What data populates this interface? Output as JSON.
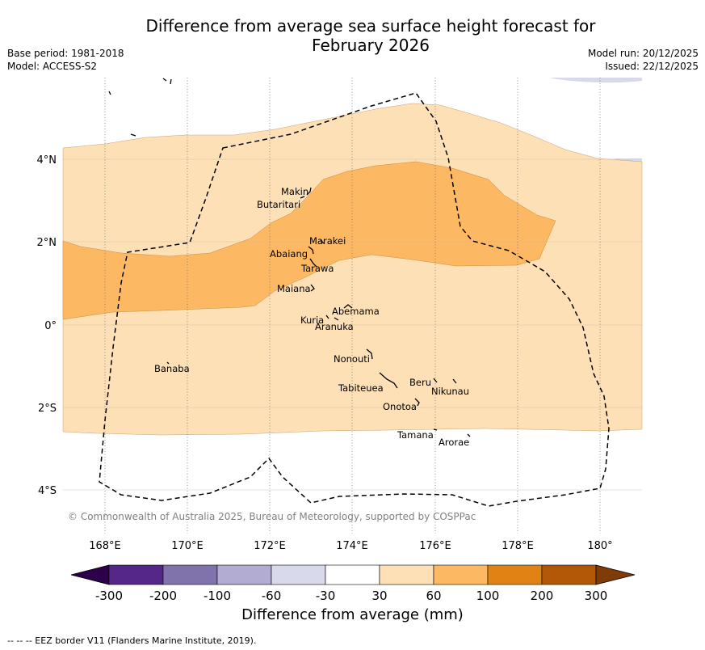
{
  "title": {
    "line1": "Difference from average sea surface height forecast for",
    "line2": "February 2026"
  },
  "meta": {
    "base_period": "Base period: 1981-2018",
    "model": "Model: ACCESS-S2",
    "model_run": "Model run: 20/12/2025",
    "issued": "Issued: 22/12/2025"
  },
  "axes": {
    "longitude_labels": [
      "168°E",
      "170°E",
      "172°E",
      "174°E",
      "176°E",
      "178°E",
      "180°"
    ],
    "latitude_labels": [
      "4°N",
      "2°N",
      "0°",
      "2°S",
      "4°S"
    ],
    "lon_range": [
      167,
      181
    ],
    "lat_range": [
      -5,
      6
    ]
  },
  "places": [
    {
      "name": "Makin",
      "lon": 173.0,
      "lat": 3.3
    },
    {
      "name": "Butaritari",
      "lon": 173.0,
      "lat": 3.0
    },
    {
      "name": "Marakei",
      "lon": 173.3,
      "lat": 2.0
    },
    {
      "name": "Abaiang",
      "lon": 172.9,
      "lat": 1.8
    },
    {
      "name": "Tarawa",
      "lon": 173.0,
      "lat": 1.4
    },
    {
      "name": "Maiana",
      "lon": 173.0,
      "lat": 0.9
    },
    {
      "name": "Abemama",
      "lon": 173.9,
      "lat": 0.4
    },
    {
      "name": "Kuria",
      "lon": 173.4,
      "lat": 0.2
    },
    {
      "name": "Aranuka",
      "lon": 173.6,
      "lat": 0.2
    },
    {
      "name": "Nonouti",
      "lon": 174.4,
      "lat": -0.7
    },
    {
      "name": "Banaba",
      "lon": 169.5,
      "lat": -0.9
    },
    {
      "name": "Beru",
      "lon": 176.0,
      "lat": -1.3
    },
    {
      "name": "Nikunau",
      "lon": 176.5,
      "lat": -1.3
    },
    {
      "name": "Tabiteuea",
      "lon": 174.9,
      "lat": -1.2
    },
    {
      "name": "Onotoa",
      "lon": 175.6,
      "lat": -1.8
    },
    {
      "name": "Tamana",
      "lon": 176.0,
      "lat": -2.5
    },
    {
      "name": "Arorae",
      "lon": 176.8,
      "lat": -2.7
    }
  ],
  "colorbar": {
    "labels": [
      "-300",
      "-200",
      "-100",
      "-60",
      "-30",
      "30",
      "60",
      "100",
      "200",
      "300"
    ],
    "colors": [
      "#2d004b",
      "#542788",
      "#8073ac",
      "#b2abd2",
      "#d8daeb",
      "#ffffff",
      "#fee0b6",
      "#fdb863",
      "#e08214",
      "#b35806",
      "#7f3b08"
    ],
    "title": "Difference from average (mm)"
  },
  "copyright": "© Commonwealth of Australia 2025, Bureau of Meteorology, supported by COSPPac",
  "eez_note": "-- -- -- EEZ border V11 (Flanders Marine Institute, 2019)."
}
